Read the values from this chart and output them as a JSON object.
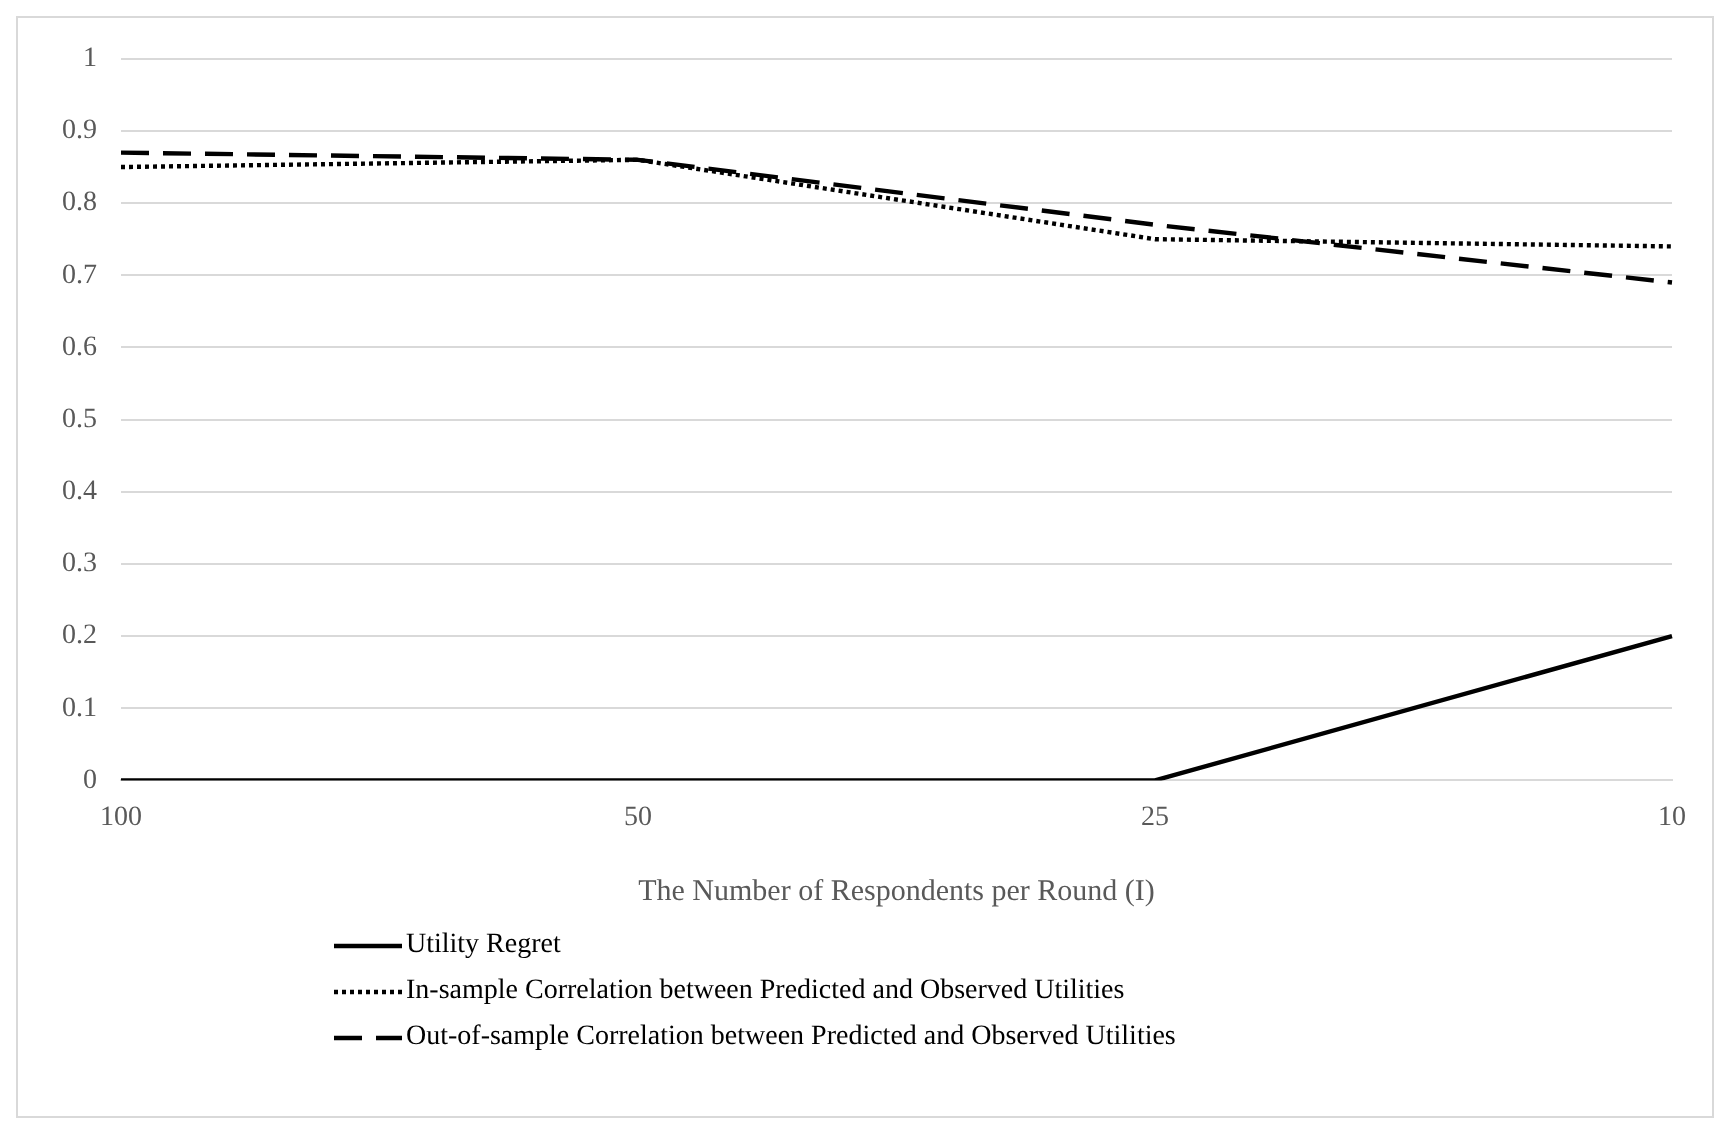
{
  "chart_data": {
    "type": "line",
    "xlabel": "The Number of Respondents per Round (I)",
    "categories": [
      "100",
      "50",
      "25",
      "10"
    ],
    "series": [
      {
        "name": "Utility Regret",
        "color": "#000000",
        "line_style": "solid",
        "values": [
          0,
          0,
          0,
          0.2
        ]
      },
      {
        "name": "In-sample Correlation between Predicted and Observed Utilities",
        "color": "#000000",
        "line_style": "dotted",
        "values": [
          0.85,
          0.86,
          0.75,
          0.74
        ]
      },
      {
        "name": "Out-of-sample Correlation between Predicted and Observed Utilities",
        "color": "#000000",
        "line_style": "dashed",
        "values": [
          0.87,
          0.86,
          0.77,
          0.69
        ]
      }
    ],
    "ylim": [
      0,
      1
    ],
    "yticks": [
      0,
      0.1,
      0.2,
      0.3,
      0.4,
      0.5,
      0.6,
      0.7,
      0.8,
      0.9,
      1
    ],
    "grid": "y",
    "legend": "bottom",
    "marker": "none"
  }
}
